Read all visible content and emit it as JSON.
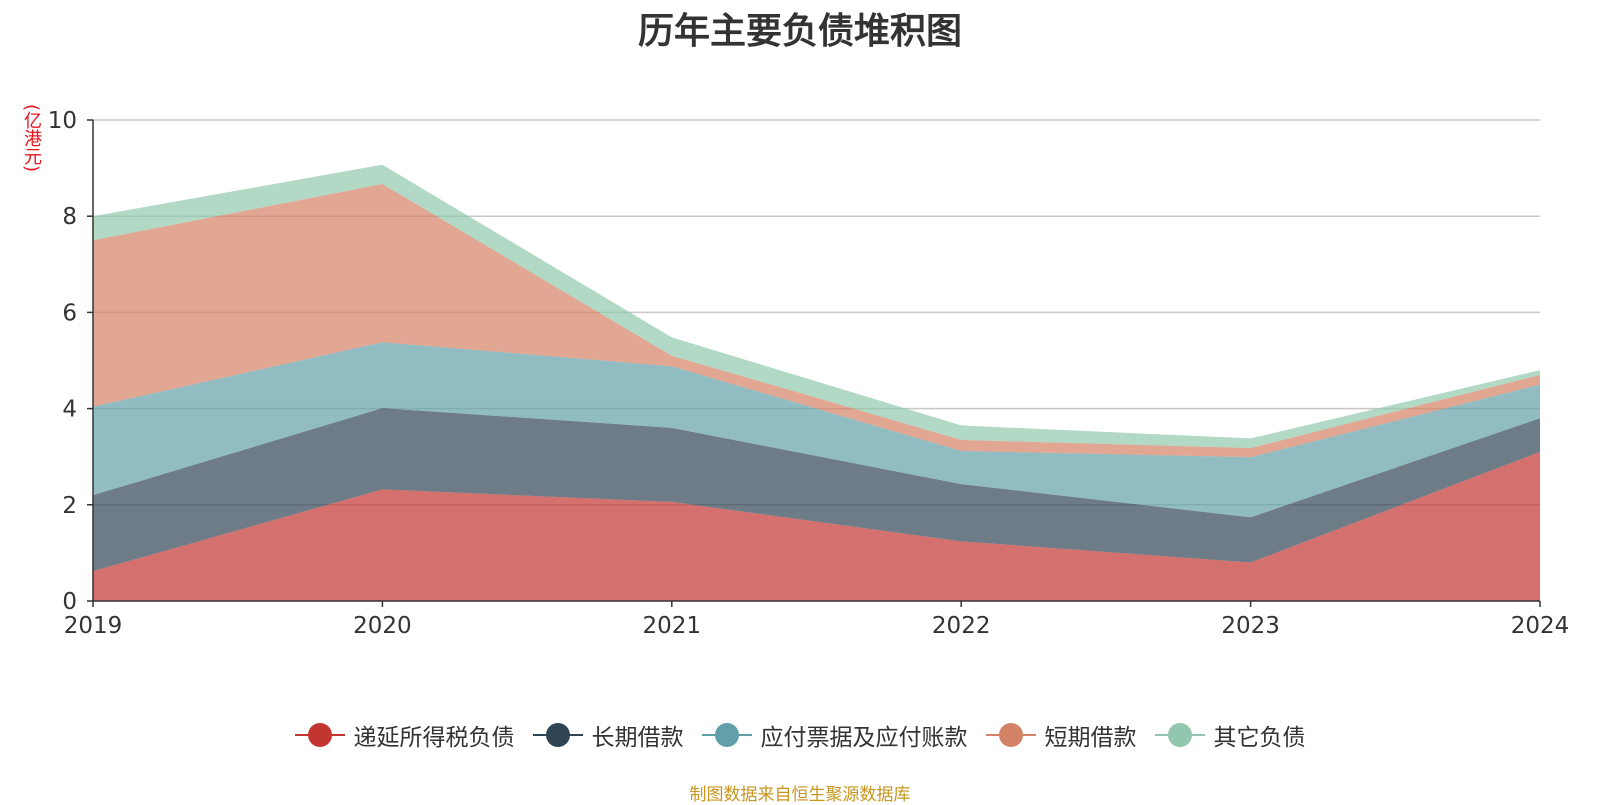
{
  "chart_data": {
    "type": "area",
    "stacked": true,
    "title": "历年主要负债堆积图",
    "y_unit": "(亿港元)",
    "x": [
      "2019",
      "2020",
      "2021",
      "2022",
      "2023",
      "2024"
    ],
    "ylim": [
      0,
      10
    ],
    "yticks": [
      "0",
      "2",
      "4",
      "6",
      "8",
      "10"
    ],
    "grid": true,
    "legend_position": "bottom",
    "series": [
      {
        "name": "递延所得税负债",
        "color": "#c23531",
        "values": [
          0.62,
          2.32,
          2.06,
          1.24,
          0.8,
          3.1
        ]
      },
      {
        "name": "长期借款",
        "color": "#2f4554",
        "values": [
          1.58,
          1.69,
          1.54,
          1.19,
          0.94,
          0.7
        ]
      },
      {
        "name": "应付票据及应付账款",
        "color": "#61a0a8",
        "values": [
          1.84,
          1.37,
          1.28,
          0.69,
          1.25,
          0.7
        ]
      },
      {
        "name": "短期借款",
        "color": "#d48265",
        "values": [
          3.46,
          3.29,
          0.22,
          0.23,
          0.19,
          0.2
        ]
      },
      {
        "name": "其它负债",
        "color": "#91c7ae",
        "values": [
          0.5,
          0.4,
          0.38,
          0.3,
          0.2,
          0.1
        ]
      }
    ]
  },
  "footer": {
    "source": "制图数据来自恒生聚源数据库"
  }
}
